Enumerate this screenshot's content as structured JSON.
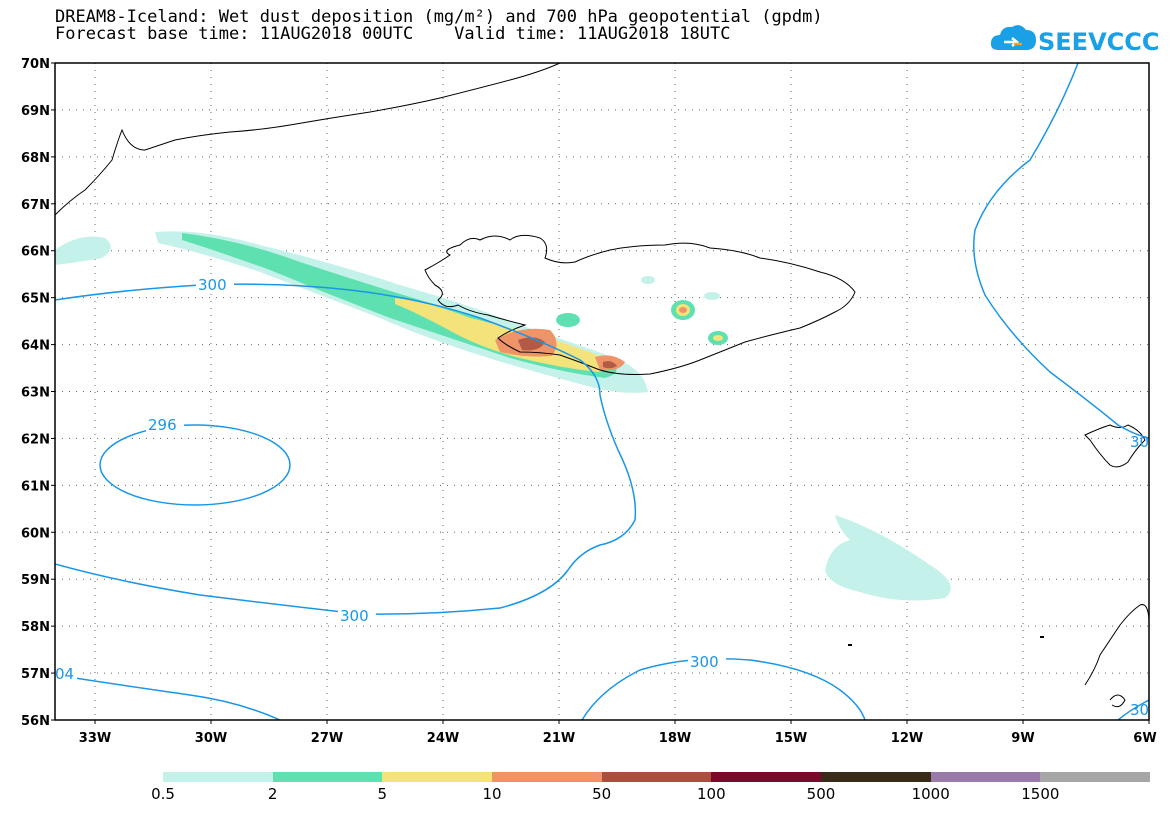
{
  "header": {
    "title_line1": "DREAM8-Iceland: Wet dust deposition (mg/m²) and 700 hPa geopotential (gpdm)",
    "title_line2": "Forecast base time: 11AUG2018 00UTC    Valid time: 11AUG2018 18UTC"
  },
  "logo": {
    "text": "SEEVCCC",
    "color": "#1aa0e6"
  },
  "map": {
    "lat_labels": [
      "70N",
      "69N",
      "68N",
      "67N",
      "66N",
      "65N",
      "64N",
      "63N",
      "62N",
      "61N",
      "60N",
      "59N",
      "58N",
      "57N",
      "56N"
    ],
    "lon_labels": [
      "33W",
      "30W",
      "27W",
      "24W",
      "21W",
      "18W",
      "15W",
      "12W",
      "9W",
      "6W"
    ],
    "contour_labels": [
      "300",
      "296",
      "300",
      "300",
      "04",
      "30",
      "30"
    ],
    "contour_color": "#1a96e6"
  },
  "legend": {
    "labels": [
      "0.5",
      "2",
      "5",
      "10",
      "50",
      "100",
      "500",
      "1000",
      "1500"
    ],
    "colors": [
      "#c4f2ea",
      "#5ee0b0",
      "#f4e37a",
      "#ee9468",
      "#a8503e",
      "#7a0a2a",
      "#3a2a18",
      "#9a7aa8",
      "#a6a6a6"
    ]
  }
}
